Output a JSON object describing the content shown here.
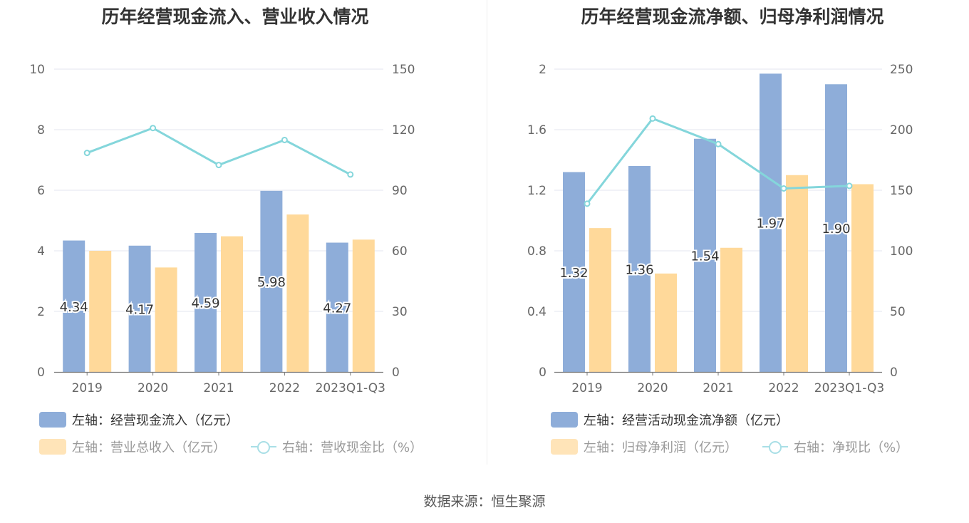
{
  "source_label": "数据来源：恒生聚源",
  "colors": {
    "blue": "#8eadd9",
    "orange": "#ffd99a",
    "line": "#84d6db"
  },
  "chart_data": [
    {
      "type": "bar",
      "title": "历年经营现金流入、营业收入情况",
      "categories": [
        "2019",
        "2020",
        "2021",
        "2022",
        "2023Q1-Q3"
      ],
      "left_axis": {
        "min": 0,
        "max": 10,
        "ticks": [
          "0",
          "2",
          "4",
          "6",
          "8",
          "10"
        ]
      },
      "right_axis": {
        "min": 0,
        "max": 150,
        "ticks": [
          "0",
          "30",
          "60",
          "90",
          "120",
          "150"
        ]
      },
      "series": [
        {
          "name": "左轴：经营现金流入（亿元）",
          "axis": "left",
          "kind": "bar",
          "color": "#8eadd9",
          "values": [
            4.34,
            4.17,
            4.59,
            5.98,
            4.27
          ],
          "labels": [
            "4.34",
            "4.17",
            "4.59",
            "5.98",
            "4.27"
          ]
        },
        {
          "name": "左轴：营业总收入（亿元）",
          "axis": "left",
          "kind": "bar",
          "color": "#ffd99a",
          "values": [
            4.0,
            3.45,
            4.48,
            5.2,
            4.37
          ]
        },
        {
          "name": "右轴：营收现金比（%）",
          "axis": "right",
          "kind": "line",
          "color": "#84d6db",
          "values": [
            108.5,
            120.8,
            102.5,
            114.9,
            97.8
          ]
        }
      ]
    },
    {
      "type": "bar",
      "title": "历年经营现金流净额、归母净利润情况",
      "categories": [
        "2019",
        "2020",
        "2021",
        "2022",
        "2023Q1-Q3"
      ],
      "left_axis": {
        "min": 0,
        "max": 2,
        "ticks": [
          "0",
          "0.4",
          "0.8",
          "1.2",
          "1.6",
          "2"
        ]
      },
      "right_axis": {
        "min": 0,
        "max": 250,
        "ticks": [
          "0",
          "50",
          "100",
          "150",
          "200",
          "250"
        ]
      },
      "series": [
        {
          "name": "左轴：经营活动现金流净额（亿元）",
          "axis": "left",
          "kind": "bar",
          "color": "#8eadd9",
          "values": [
            1.32,
            1.36,
            1.54,
            1.97,
            1.9
          ],
          "labels": [
            "1.32",
            "1.36",
            "1.54",
            "1.97",
            "1.90"
          ]
        },
        {
          "name": "左轴：归母净利润（亿元）",
          "axis": "left",
          "kind": "bar",
          "color": "#ffd99a",
          "values": [
            0.95,
            0.65,
            0.82,
            1.3,
            1.24
          ]
        },
        {
          "name": "右轴：净现比（%）",
          "axis": "right",
          "kind": "line",
          "color": "#84d6db",
          "values": [
            138.9,
            209.2,
            188.1,
            151.5,
            153.6
          ]
        }
      ]
    }
  ]
}
